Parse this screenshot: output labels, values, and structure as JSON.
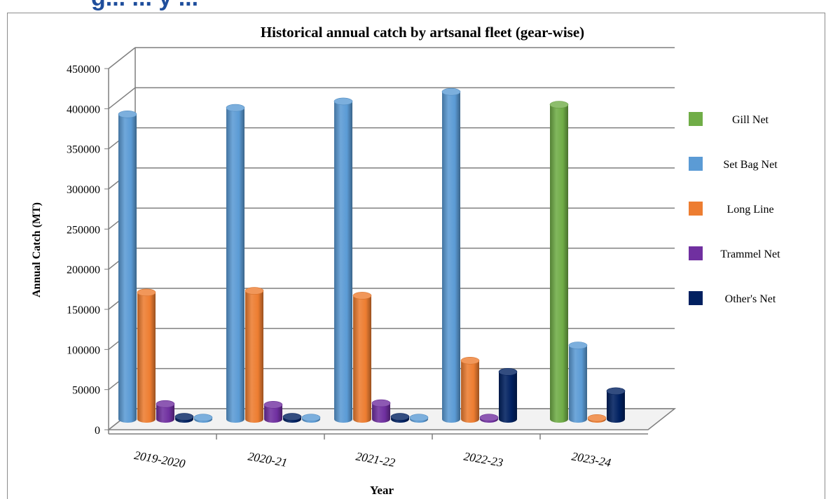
{
  "header_fragment": "g... ... y ...",
  "chart_data": {
    "type": "bar",
    "title": "Historical annual catch by artsanal fleet (gear-wise)",
    "xlabel": "Year",
    "ylabel": "Annual Catch (MT)",
    "ylim": [
      0,
      450000
    ],
    "yticks": [
      "0",
      "50000",
      "100000",
      "150000",
      "200000",
      "250000",
      "300000",
      "350000",
      "400000",
      "450000"
    ],
    "categories": [
      "2019-2020",
      "2020-21",
      "2021-22",
      "2022-23",
      "2023-24"
    ],
    "grid": true,
    "legend_position": "right",
    "series": [
      {
        "name": "Gill Net",
        "color": "#70ad47",
        "values": [
          0,
          0,
          0,
          0,
          392000
        ]
      },
      {
        "name": "Set Bag Net",
        "color": "#5b9bd5",
        "values": [
          380000,
          388000,
          396000,
          408000,
          92000
        ]
      },
      {
        "name": "Long Line",
        "color": "#ed7d31",
        "values": [
          158000,
          160000,
          154000,
          73000,
          1500
        ]
      },
      {
        "name": "Trammel Net",
        "color": "#7030a0",
        "values": [
          19000,
          18000,
          20000,
          2000,
          0
        ]
      },
      {
        "name": "Other's Net",
        "color": "#002060",
        "values": [
          3000,
          3000,
          3000,
          59000,
          35000
        ]
      }
    ],
    "extra_marks": [
      {
        "category_index": 0,
        "color": "#5b9bd5",
        "value": 2000
      },
      {
        "category_index": 1,
        "color": "#5b9bd5",
        "value": 2000
      },
      {
        "category_index": 2,
        "color": "#5b9bd5",
        "value": 2000
      }
    ]
  }
}
